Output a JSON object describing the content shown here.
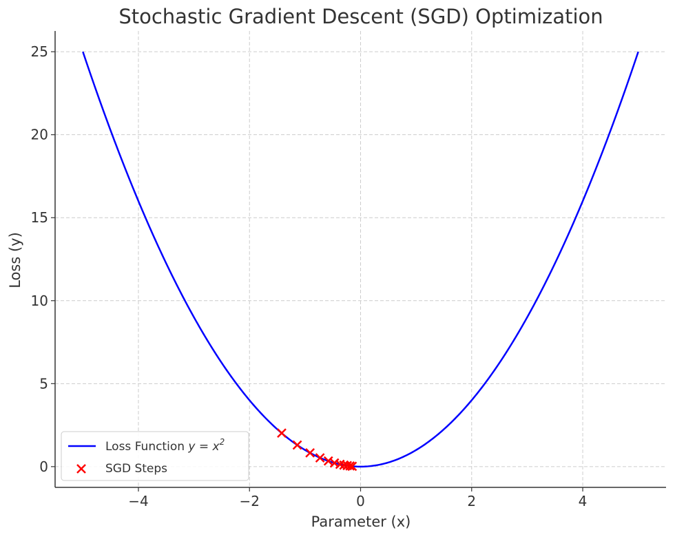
{
  "chart_data": {
    "type": "line",
    "title": "Stochastic Gradient Descent (SGD) Optimization",
    "xlabel": "Parameter (x)",
    "ylabel": "Loss (y)",
    "xlim": [
      -5.5,
      5.5
    ],
    "ylim": [
      -1.25,
      26.25
    ],
    "xticks": [
      -4,
      -2,
      0,
      2,
      4
    ],
    "xtick_labels": [
      "−4",
      "−2",
      "0",
      "2",
      "4"
    ],
    "yticks": [
      0,
      5,
      10,
      15,
      20,
      25
    ],
    "ytick_labels": [
      "0",
      "5",
      "10",
      "15",
      "20",
      "25"
    ],
    "grid": true,
    "legend_position": "lower-left",
    "series": [
      {
        "name": "Loss Function",
        "kind": "line",
        "color": "#0000ff",
        "function": "y = x^2",
        "x_range": [
          -5,
          5
        ]
      },
      {
        "name": "SGD Steps",
        "kind": "scatter",
        "marker": "x",
        "color": "#ff0000",
        "x": [
          -1.42,
          -1.14,
          -0.91,
          -0.73,
          -0.58,
          -0.47,
          -0.37,
          -0.3,
          -0.24,
          -0.19,
          -0.15
        ],
        "y": [
          2.02,
          1.3,
          0.83,
          0.53,
          0.34,
          0.22,
          0.14,
          0.09,
          0.06,
          0.04,
          0.02
        ]
      }
    ],
    "legend": {
      "loss_label_prefix": "Loss Function ",
      "loss_label_formula": "y = x",
      "loss_label_exponent": "2",
      "steps_label": "SGD Steps"
    }
  }
}
